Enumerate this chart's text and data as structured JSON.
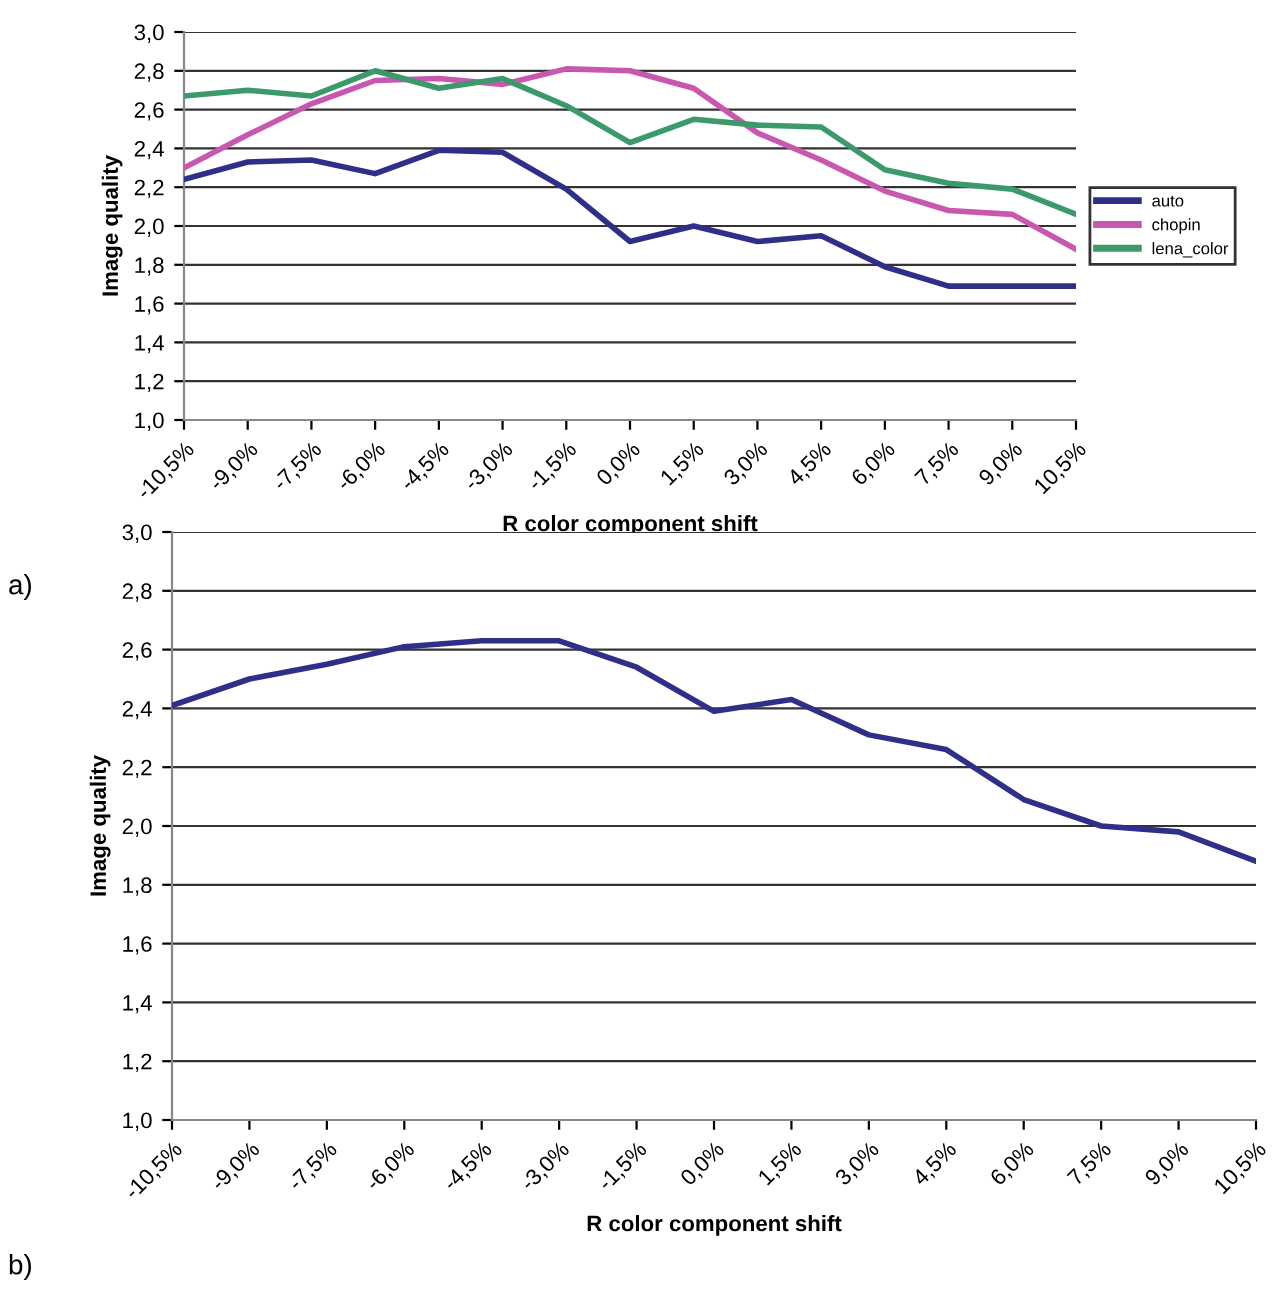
{
  "chart_data": [
    {
      "type": "line",
      "xlabel": "R color component shift",
      "ylabel": "Image quality",
      "annotations": [
        "a)"
      ],
      "legend": "right",
      "grid": "y",
      "marker": "none",
      "line_style": "solid",
      "categories": [
        "-10,5%",
        "-9,0%",
        "-7,5%",
        "-6,0%",
        "-4,5%",
        "-3,0%",
        "-1,5%",
        "0,0%",
        "1,5%",
        "3,0%",
        "4,5%",
        "6,0%",
        "7,5%",
        "9,0%",
        "10,5%"
      ],
      "ylim": [
        1.0,
        3.0
      ],
      "yticks": [
        {
          "value": 1.0,
          "label": "1,0"
        },
        {
          "value": 1.2,
          "label": "1,2"
        },
        {
          "value": 1.4,
          "label": "1,4"
        },
        {
          "value": 1.6,
          "label": "1,6"
        },
        {
          "value": 1.8,
          "label": "1,8"
        },
        {
          "value": 2.0,
          "label": "2,0"
        },
        {
          "value": 2.2,
          "label": "2,2"
        },
        {
          "value": 2.4,
          "label": "2,4"
        },
        {
          "value": 2.6,
          "label": "2,6"
        },
        {
          "value": 2.8,
          "label": "2,8"
        },
        {
          "value": 3.0,
          "label": "3,0"
        }
      ],
      "series": [
        {
          "name": "auto",
          "color": "#2e2f88",
          "values": [
            2.24,
            2.33,
            2.34,
            2.27,
            2.39,
            2.38,
            2.19,
            1.92,
            2.0,
            1.92,
            1.95,
            1.79,
            1.69,
            1.69,
            1.69
          ]
        },
        {
          "name": "chopin",
          "color": "#c857b0",
          "values": [
            2.3,
            2.47,
            2.63,
            2.75,
            2.76,
            2.73,
            2.81,
            2.8,
            2.71,
            2.48,
            2.34,
            2.18,
            2.08,
            2.06,
            1.88
          ]
        },
        {
          "name": "lena_color",
          "color": "#3a9a6a",
          "values": [
            2.67,
            2.7,
            2.67,
            2.8,
            2.71,
            2.76,
            2.62,
            2.43,
            2.55,
            2.52,
            2.51,
            2.29,
            2.22,
            2.19,
            2.06
          ]
        }
      ]
    },
    {
      "type": "line",
      "xlabel": "R color component shift",
      "ylabel": "Image quality",
      "annotations": [
        "b)"
      ],
      "grid": "y",
      "marker": "none",
      "line_style": "solid",
      "categories": [
        "-10,5%",
        "-9,0%",
        "-7,5%",
        "-6,0%",
        "-4,5%",
        "-3,0%",
        "-1,5%",
        "0,0%",
        "1,5%",
        "3,0%",
        "4,5%",
        "6,0%",
        "7,5%",
        "9,0%",
        "10,5%"
      ],
      "ylim": [
        1.0,
        3.0
      ],
      "yticks": [
        {
          "value": 1.0,
          "label": "1,0"
        },
        {
          "value": 1.2,
          "label": "1,2"
        },
        {
          "value": 1.4,
          "label": "1,4"
        },
        {
          "value": 1.6,
          "label": "1,6"
        },
        {
          "value": 1.8,
          "label": "1,8"
        },
        {
          "value": 2.0,
          "label": "2,0"
        },
        {
          "value": 2.2,
          "label": "2,2"
        },
        {
          "value": 2.4,
          "label": "2,4"
        },
        {
          "value": 2.6,
          "label": "2,6"
        },
        {
          "value": 2.8,
          "label": "2,8"
        },
        {
          "value": 3.0,
          "label": "3,0"
        }
      ],
      "series": [
        {
          "color": "#2e2f88",
          "values": [
            2.41,
            2.5,
            2.55,
            2.61,
            2.63,
            2.63,
            2.54,
            2.39,
            2.43,
            2.31,
            2.26,
            2.09,
            2.0,
            1.98,
            1.88
          ]
        }
      ]
    }
  ]
}
